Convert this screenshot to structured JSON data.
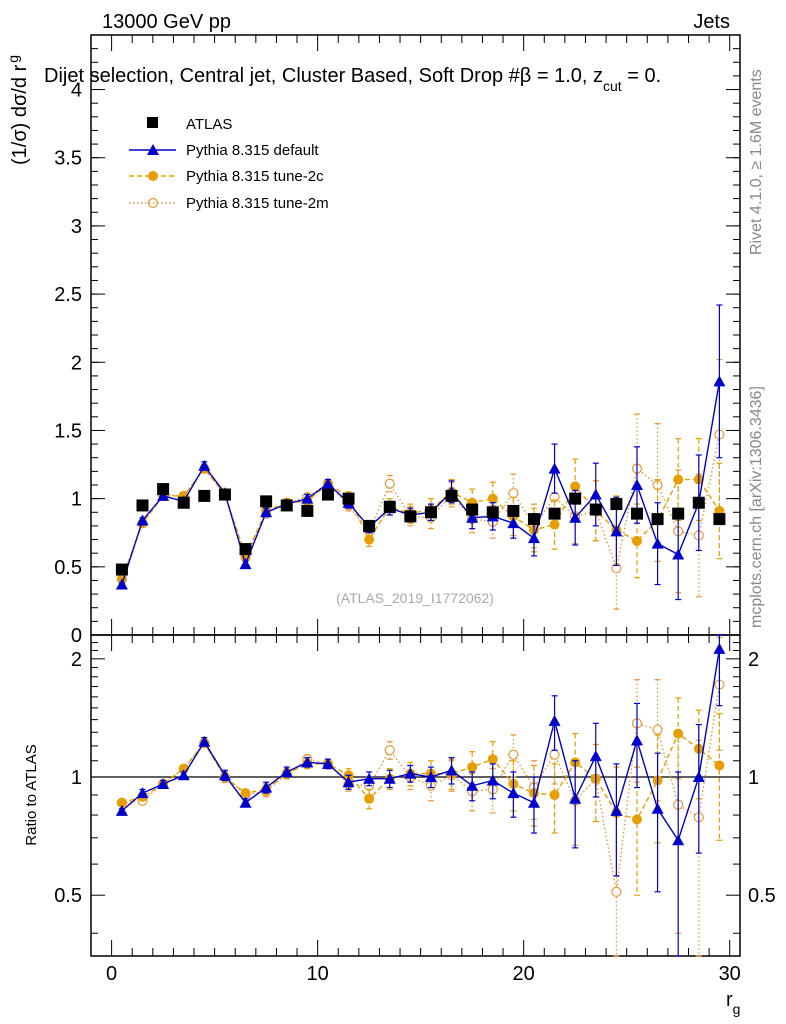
{
  "header": {
    "left": "13000 GeV pp",
    "right": "Jets",
    "title": "Dijet selection, Central jet, Cluster Based, Soft Drop #β = 1.0, z_cut = 0.",
    "title_pre": "Dijet selection, Central jet, Cluster Based, Soft Drop #β = 1.0, z",
    "title_sub": "cut",
    "title_post": " = 0.",
    "side_top": "Rivet 4.1.0, ≥ 1.6M events",
    "side_bottom": "mcplots.cern.ch [arXiv:1306.3436]",
    "analysis": "(ATLAS_2019_I1772062)"
  },
  "colors": {
    "atlas": "#000000",
    "default": "#0000cc",
    "tune2c": "#e69f00",
    "tune2m": "#e8973a",
    "axis": "#000000"
  },
  "chart_data": [
    {
      "type": "scatter",
      "panel": "main",
      "ylabel_pre": "(1/σ) dσ/d r",
      "ylabel_sub": "g",
      "xlim": [
        -1,
        30.5
      ],
      "ylim": [
        0,
        4.4
      ],
      "yticks": [
        0,
        0.5,
        1,
        1.5,
        2,
        2.5,
        3,
        3.5,
        4
      ],
      "ytick_labels": [
        "0",
        "0.5",
        "1",
        "1.5",
        "2",
        "2.5",
        "3",
        "3.5",
        "4"
      ],
      "legend": {
        "placement": "top-left",
        "entries": [
          "ATLAS",
          "Pythia 8.315 default",
          "Pythia 8.315 tune-2c",
          "Pythia 8.315 tune-2m"
        ]
      },
      "x": [
        0.5,
        1.5,
        2.5,
        3.5,
        4.5,
        5.5,
        6.5,
        7.5,
        8.5,
        9.5,
        10.5,
        11.5,
        12.5,
        13.5,
        14.5,
        15.5,
        16.5,
        17.5,
        18.5,
        19.5,
        20.5,
        21.5,
        22.5,
        23.5,
        24.5,
        25.5,
        26.5,
        27.5,
        28.5,
        29.5
      ],
      "series": [
        {
          "name": "ATLAS",
          "marker": "square",
          "values": [
            0.48,
            0.95,
            1.07,
            0.97,
            1.02,
            1.03,
            0.63,
            0.98,
            0.95,
            0.91,
            1.03,
            1.0,
            0.8,
            0.94,
            0.87,
            0.9,
            1.02,
            0.92,
            0.9,
            0.91,
            0.85,
            0.89,
            1.0,
            0.92,
            0.96,
            0.89,
            0.85,
            0.89,
            0.97,
            0.85
          ]
        },
        {
          "name": "Pythia 8.315 default",
          "marker": "triangle",
          "line": "solid",
          "values": [
            0.37,
            0.84,
            1.02,
            0.98,
            1.24,
            1.04,
            0.52,
            0.9,
            0.96,
            1.0,
            1.11,
            0.97,
            0.79,
            0.93,
            0.88,
            0.9,
            1.05,
            0.86,
            0.87,
            0.82,
            0.71,
            1.22,
            0.86,
            1.03,
            0.76,
            1.1,
            0.67,
            0.59,
            0.97,
            1.86
          ],
          "errors": [
            0.01,
            0.02,
            0.02,
            0.02,
            0.03,
            0.03,
            0.02,
            0.03,
            0.03,
            0.03,
            0.03,
            0.04,
            0.04,
            0.05,
            0.05,
            0.06,
            0.08,
            0.08,
            0.1,
            0.11,
            0.13,
            0.18,
            0.2,
            0.23,
            0.25,
            0.28,
            0.3,
            0.33,
            0.35,
            0.56
          ]
        },
        {
          "name": "Pythia 8.315 tune-2c",
          "marker": "circle",
          "line": "dashed",
          "values": [
            0.41,
            0.82,
            1.02,
            1.02,
            1.22,
            1.03,
            0.58,
            0.91,
            0.97,
            0.98,
            1.11,
            1.01,
            0.7,
            0.94,
            0.89,
            0.92,
            1.05,
            0.97,
            1.0,
            0.87,
            0.77,
            0.81,
            1.09,
            0.91,
            0.77,
            0.69,
            0.84,
            1.14,
            1.14,
            0.91
          ],
          "errors": [
            0.01,
            0.02,
            0.02,
            0.02,
            0.03,
            0.03,
            0.02,
            0.03,
            0.03,
            0.03,
            0.03,
            0.04,
            0.05,
            0.06,
            0.07,
            0.08,
            0.09,
            0.1,
            0.12,
            0.14,
            0.16,
            0.18,
            0.2,
            0.22,
            0.25,
            0.27,
            0.3,
            0.3,
            0.3,
            0.35
          ]
        },
        {
          "name": "Pythia 8.315 tune-2m",
          "marker": "open-circle",
          "line": "dotted",
          "values": [
            0.41,
            0.82,
            1.03,
            1.02,
            1.22,
            1.03,
            0.57,
            0.89,
            0.97,
            1.01,
            1.11,
            0.95,
            0.76,
            1.11,
            0.87,
            0.86,
            1.03,
            0.85,
            0.83,
            1.04,
            0.8,
            1.01,
            0.87,
            0.91,
            0.49,
            1.22,
            1.1,
            0.76,
            0.73,
            1.47
          ],
          "errors": [
            0.01,
            0.02,
            0.02,
            0.02,
            0.03,
            0.03,
            0.02,
            0.03,
            0.03,
            0.03,
            0.03,
            0.04,
            0.05,
            0.06,
            0.07,
            0.08,
            0.09,
            0.1,
            0.12,
            0.14,
            0.16,
            0.18,
            0.2,
            0.22,
            0.3,
            0.4,
            0.45,
            0.45,
            0.45,
            0.55
          ]
        }
      ]
    },
    {
      "type": "scatter",
      "panel": "ratio",
      "ylabel": "Ratio to ATLAS",
      "xlabel_pre": "r",
      "xlabel_sub": "g",
      "xlim": [
        -1,
        30.5
      ],
      "ylim": [
        0.35,
        2.3
      ],
      "xticks": [
        0,
        10,
        20,
        30
      ],
      "xtick_labels": [
        "0",
        "10",
        "20",
        "30"
      ],
      "yticks": [
        0.5,
        1,
        2
      ],
      "ytick_labels": [
        "0.5",
        "1",
        "2"
      ],
      "reference_line": 1,
      "x": [
        0.5,
        1.5,
        2.5,
        3.5,
        4.5,
        5.5,
        6.5,
        7.5,
        8.5,
        9.5,
        10.5,
        11.5,
        12.5,
        13.5,
        14.5,
        15.5,
        16.5,
        17.5,
        18.5,
        19.5,
        20.5,
        21.5,
        22.5,
        23.5,
        24.5,
        25.5,
        26.5,
        27.5,
        28.5,
        29.5
      ],
      "series": [
        {
          "name": "Pythia 8.315 default",
          "marker": "triangle",
          "line": "solid",
          "values": [
            0.82,
            0.91,
            0.96,
            1.01,
            1.23,
            1.01,
            0.86,
            0.94,
            1.03,
            1.09,
            1.08,
            0.97,
            0.99,
            0.99,
            1.02,
            1.0,
            1.04,
            0.95,
            0.98,
            0.91,
            0.86,
            1.39,
            0.88,
            1.13,
            0.82,
            1.24,
            0.83,
            0.69,
            1.0,
            2.12
          ],
          "errors": [
            0.01,
            0.02,
            0.02,
            0.02,
            0.03,
            0.03,
            0.02,
            0.03,
            0.03,
            0.03,
            0.03,
            0.04,
            0.04,
            0.05,
            0.05,
            0.06,
            0.08,
            0.08,
            0.1,
            0.12,
            0.14,
            0.22,
            0.22,
            0.24,
            0.26,
            0.3,
            0.32,
            0.34,
            0.36,
            0.6
          ]
        },
        {
          "name": "Pythia 8.315 tune-2c",
          "marker": "circle",
          "line": "dashed",
          "values": [
            0.86,
            0.89,
            0.96,
            1.05,
            1.22,
            1.0,
            0.91,
            0.93,
            1.02,
            1.08,
            1.08,
            1.01,
            0.88,
            0.99,
            1.02,
            1.02,
            1.02,
            1.06,
            1.11,
            0.96,
            0.91,
            0.9,
            1.09,
            0.99,
            0.81,
            0.78,
            0.98,
            1.29,
            1.18,
            1.07
          ],
          "errors": [
            0.01,
            0.02,
            0.02,
            0.02,
            0.03,
            0.03,
            0.02,
            0.03,
            0.03,
            0.03,
            0.03,
            0.04,
            0.05,
            0.06,
            0.07,
            0.08,
            0.09,
            0.1,
            0.12,
            0.14,
            0.16,
            0.18,
            0.2,
            0.22,
            0.25,
            0.28,
            0.3,
            0.3,
            0.3,
            0.38
          ]
        },
        {
          "name": "Pythia 8.315 tune-2m",
          "marker": "open-circle",
          "line": "dotted",
          "values": [
            0.86,
            0.87,
            0.96,
            1.05,
            1.22,
            1.0,
            0.9,
            0.92,
            1.02,
            1.11,
            1.08,
            0.96,
            0.95,
            1.17,
            1.0,
            0.95,
            1.01,
            0.92,
            0.93,
            1.14,
            0.94,
            1.14,
            0.87,
            0.99,
            0.51,
            1.37,
            1.32,
            0.85,
            0.79,
            1.72
          ],
          "errors": [
            0.01,
            0.02,
            0.02,
            0.02,
            0.03,
            0.03,
            0.02,
            0.03,
            0.03,
            0.03,
            0.03,
            0.04,
            0.05,
            0.06,
            0.07,
            0.08,
            0.09,
            0.1,
            0.12,
            0.14,
            0.16,
            0.18,
            0.2,
            0.22,
            0.3,
            0.4,
            0.45,
            0.45,
            0.45,
            0.55
          ]
        }
      ]
    }
  ]
}
